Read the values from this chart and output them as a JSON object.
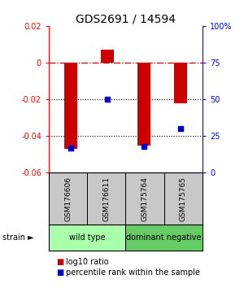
{
  "title": "GDS2691 / 14594",
  "samples": [
    "GSM176606",
    "GSM176611",
    "GSM175764",
    "GSM175765"
  ],
  "log10_ratios": [
    -0.047,
    0.007,
    -0.045,
    -0.022
  ],
  "percentile_ranks": [
    17,
    50,
    18,
    30
  ],
  "ylim_left": [
    -0.06,
    0.02
  ],
  "ylim_right": [
    0,
    100
  ],
  "yticks_left": [
    -0.06,
    -0.04,
    -0.02,
    0.0,
    0.02
  ],
  "yticks_right": [
    0,
    25,
    50,
    75,
    100
  ],
  "groups": [
    {
      "label": "wild type",
      "samples": [
        0,
        1
      ],
      "color": "#aaffaa"
    },
    {
      "label": "dominant negative",
      "samples": [
        2,
        3
      ],
      "color": "#66cc66"
    }
  ],
  "bar_color": "#cc0000",
  "dot_color": "#0000cc",
  "bg_color": "#ffffff",
  "zero_line_color": "#cc0000",
  "grid_color": "#000000",
  "label_box_color": "#c8c8c8",
  "strain_label": "strain",
  "arrow": "►",
  "legend_bar_label": "log10 ratio",
  "legend_dot_label": "percentile rank within the sample",
  "bar_width": 0.35
}
